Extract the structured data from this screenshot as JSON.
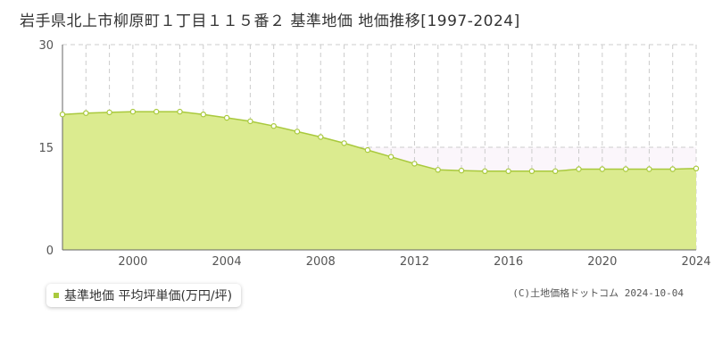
{
  "title": "岩手県北上市柳原町１丁目１１５番２ 基準地価 地価推移[1997-2024]",
  "legend": {
    "label": "基準地価 平均坪単価(万円/坪)",
    "color": "#a9c93d"
  },
  "credit": "(C)土地価格ドットコム 2024-10-04",
  "chart_data": {
    "type": "area",
    "x": [
      1997,
      1998,
      1999,
      2000,
      2001,
      2002,
      2003,
      2004,
      2005,
      2006,
      2007,
      2008,
      2009,
      2010,
      2011,
      2012,
      2013,
      2014,
      2015,
      2016,
      2017,
      2018,
      2019,
      2020,
      2021,
      2022,
      2023,
      2024
    ],
    "series": [
      {
        "name": "基準地価 平均坪単価(万円/坪)",
        "values": [
          19.8,
          20.0,
          20.1,
          20.2,
          20.2,
          20.2,
          19.8,
          19.3,
          18.8,
          18.1,
          17.3,
          16.5,
          15.6,
          14.6,
          13.6,
          12.6,
          11.7,
          11.6,
          11.5,
          11.5,
          11.5,
          11.5,
          11.8,
          11.8,
          11.8,
          11.8,
          11.8,
          11.9
        ]
      }
    ],
    "xlim": [
      1997,
      2024
    ],
    "ylim": [
      0,
      30
    ],
    "x_ticks": [
      2000,
      2004,
      2008,
      2012,
      2016,
      2020,
      2024
    ],
    "y_ticks": [
      0,
      15,
      30
    ],
    "colors": {
      "fill": "#dbeb8f",
      "line": "#a9c93d",
      "point_fill": "#ffffff",
      "grid": "#cccccc",
      "band_above": "#fbf6fb"
    },
    "grid": true
  }
}
